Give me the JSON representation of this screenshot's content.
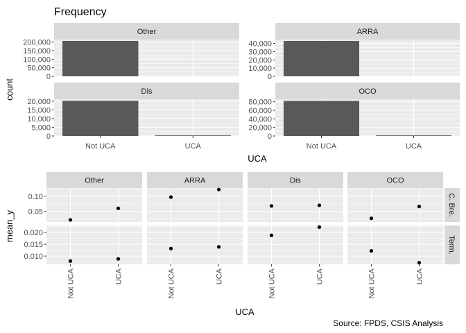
{
  "chart_data": [
    {
      "type": "bar",
      "title": "Frequency",
      "xlabel": "UCA",
      "ylabel": "count",
      "categories": [
        "Not UCA",
        "UCA"
      ],
      "facets": [
        {
          "label": "Other",
          "values": [
            207000,
            0
          ],
          "ylim": [
            0,
            215000
          ],
          "yticks": [
            0,
            50000,
            100000,
            150000,
            200000
          ],
          "ytick_labels": [
            "0",
            "50,000",
            "100,000",
            "150,000",
            "200,000"
          ]
        },
        {
          "label": "ARRA",
          "values": [
            43000,
            0
          ],
          "ylim": [
            0,
            44700
          ],
          "yticks": [
            0,
            10000,
            20000,
            30000,
            40000
          ],
          "ytick_labels": [
            "0",
            "10,000",
            "20,000",
            "30,000",
            "40,000"
          ]
        },
        {
          "label": "Dis",
          "values": [
            20200,
            280
          ],
          "ylim": [
            0,
            21100
          ],
          "yticks": [
            0,
            5000,
            10000,
            15000,
            20000
          ],
          "ytick_labels": [
            "0",
            "5,000",
            "10,000",
            "15,000",
            "20,000"
          ]
        },
        {
          "label": "OCO",
          "values": [
            82000,
            900
          ],
          "ylim": [
            0,
            86000
          ],
          "yticks": [
            0,
            20000,
            40000,
            60000,
            80000
          ],
          "ytick_labels": [
            "0",
            "20,000",
            "40,000",
            "60,000",
            "80,000"
          ]
        }
      ],
      "colors": {
        "bar": "#595959",
        "panel": "#ebebeb",
        "strip": "#d9d9d9"
      }
    },
    {
      "type": "scatter",
      "xlabel": "UCA",
      "ylabel": "mean_y",
      "categories": [
        "Not UCA",
        "UCA"
      ],
      "columns": [
        "Other",
        "ARRA",
        "Dis",
        "OCO"
      ],
      "rows": [
        {
          "label": "C. Bre.",
          "ylim": [
            0.015,
            0.127
          ],
          "yticks": [
            0.05,
            0.1
          ],
          "ytick_labels": [
            "0.05",
            "0.10"
          ],
          "values": {
            "Other": [
              0.022,
              0.06
            ],
            "ARRA": [
              0.097,
              0.122
            ],
            "Dis": [
              0.068,
              0.07
            ],
            "OCO": [
              0.027,
              0.066
            ]
          }
        },
        {
          "label": "Term.",
          "ylim": [
            0.0065,
            0.023
          ],
          "yticks": [
            0.01,
            0.015,
            0.02
          ],
          "ytick_labels": [
            "0.010",
            "0.015",
            "0.020"
          ],
          "values": {
            "Other": [
              0.0079,
              0.0088
            ],
            "ARRA": [
              0.0132,
              0.0139
            ],
            "Dis": [
              0.0188,
              0.0223
            ],
            "OCO": [
              0.0122,
              0.0072
            ]
          }
        }
      ],
      "colors": {
        "point": "#000000"
      }
    }
  ],
  "caption": "Source: FPDS, CSIS Analysis"
}
